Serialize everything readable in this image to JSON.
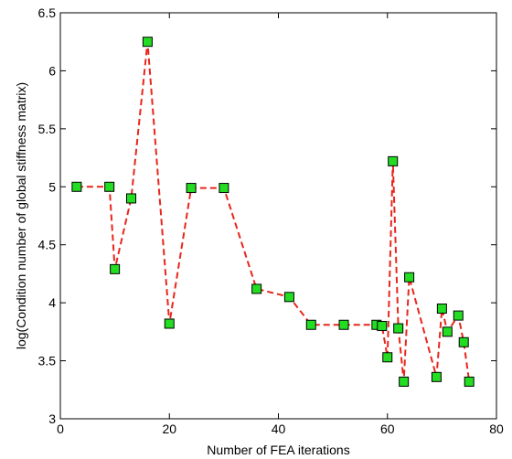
{
  "chart_data": {
    "type": "line",
    "title": "",
    "xlabel": "Number of FEA iterations",
    "ylabel": "log(Condition number of global stiffness matrix)",
    "xlim": [
      0,
      80
    ],
    "ylim": [
      3,
      6.5
    ],
    "xticks": [
      0,
      20,
      40,
      60,
      80
    ],
    "yticks": [
      3,
      3.5,
      4,
      4.5,
      5,
      5.5,
      6,
      6.5
    ],
    "xtick_labels": [
      "0",
      "20",
      "40",
      "60",
      "80"
    ],
    "ytick_labels": [
      "3",
      "3.5",
      "4",
      "4.5",
      "5",
      "5.5",
      "6",
      "6.5"
    ],
    "grid": false,
    "legend": "none",
    "series": [
      {
        "line_color": "#e8261c",
        "line_style": "dashed",
        "marker": "square",
        "marker_fill": "#22dd22",
        "marker_edge": "#000000",
        "x": [
          3,
          9,
          10,
          13,
          16,
          20,
          24,
          30,
          36,
          42,
          46,
          52,
          58,
          59,
          60,
          61,
          62,
          63,
          64,
          69,
          70,
          71,
          73,
          74,
          75
        ],
        "y": [
          5.0,
          5.0,
          4.29,
          4.9,
          6.25,
          3.82,
          4.99,
          4.99,
          4.12,
          4.05,
          3.81,
          3.81,
          3.81,
          3.8,
          3.53,
          5.22,
          3.78,
          3.32,
          4.22,
          3.36,
          3.95,
          3.75,
          3.89,
          3.66,
          3.32
        ]
      }
    ]
  }
}
